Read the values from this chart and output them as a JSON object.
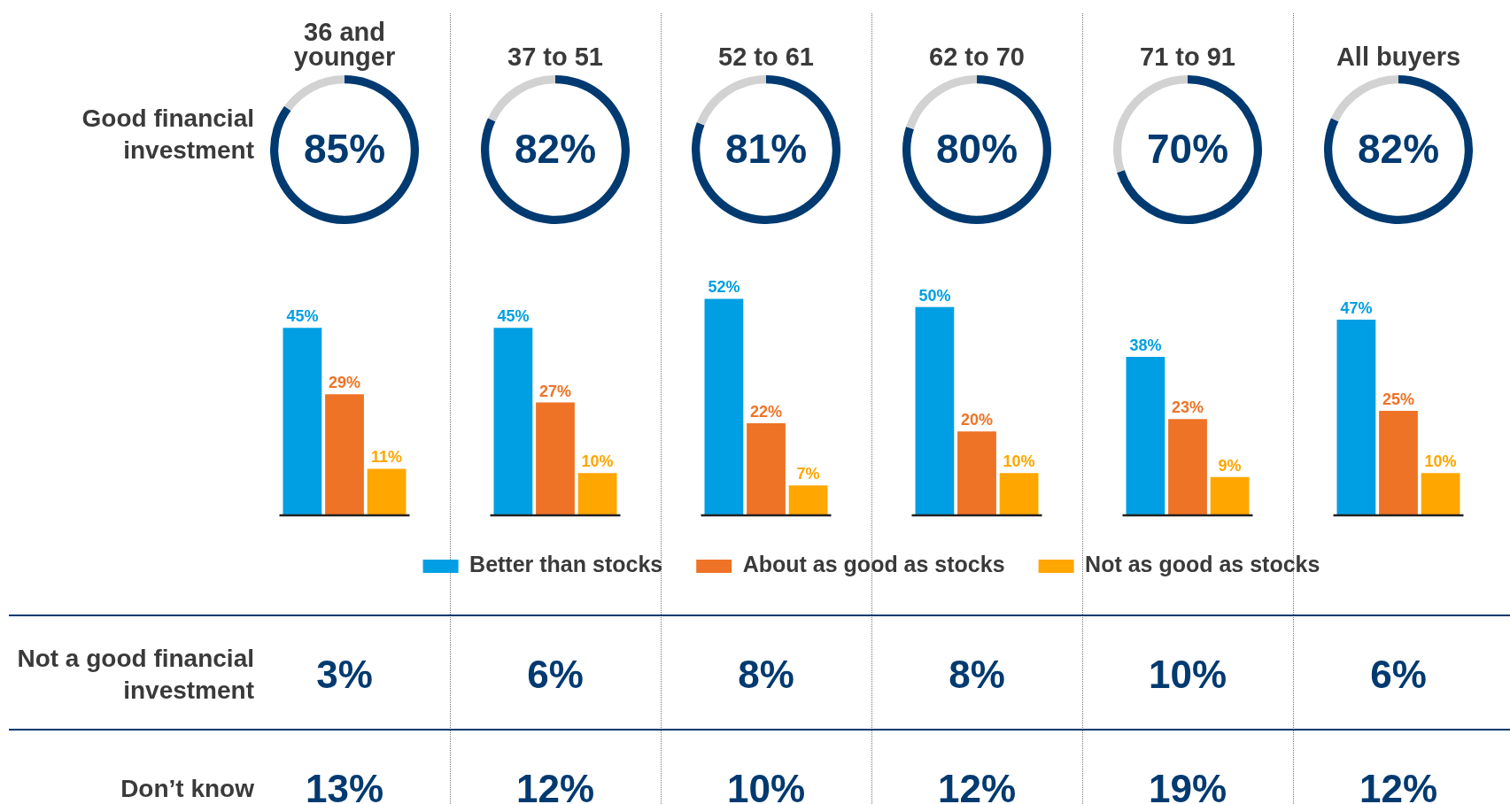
{
  "chart_data": [
    {
      "type": "donut",
      "title": "36 and younger",
      "categories": [
        "Good financial investment",
        null
      ],
      "values": [
        85,
        15
      ],
      "colors": [
        "#003a70",
        "#d2d2d2"
      ],
      "value_labels": [
        "85%",
        null
      ]
    },
    {
      "type": "donut",
      "title": "37 to 51",
      "categories": [
        null,
        null
      ],
      "values": [
        82,
        18
      ],
      "colors": [
        "#003a70",
        "#d2d2d2"
      ],
      "value_labels": [
        "82%",
        null
      ]
    },
    {
      "type": "donut",
      "title": "52 to 61",
      "categories": [
        null,
        null
      ],
      "values": [
        81,
        19
      ],
      "colors": [
        "#003a70",
        "#d2d2d2"
      ],
      "value_labels": [
        "81%",
        null
      ]
    },
    {
      "type": "donut",
      "title": "62 to 70",
      "categories": [
        null,
        null
      ],
      "values": [
        80,
        20
      ],
      "colors": [
        "#003a70",
        "#d2d2d2"
      ],
      "value_labels": [
        "80%",
        null
      ]
    },
    {
      "type": "donut",
      "title": "71 to 91",
      "categories": [
        null,
        null
      ],
      "values": [
        70,
        30
      ],
      "colors": [
        "#003a70",
        "#d2d2d2"
      ],
      "value_labels": [
        "70%",
        null
      ]
    },
    {
      "type": "donut",
      "title": "All buyers",
      "categories": [
        null,
        null
      ],
      "values": [
        82,
        18
      ],
      "colors": [
        "#003a70",
        "#d2d2d2"
      ],
      "value_labels": [
        "82%",
        null
      ]
    },
    {
      "type": "bar",
      "categories": [
        null,
        null,
        null,
        null,
        null,
        null
      ],
      "legend": "bottom",
      "series": [
        {
          "name": "Better than stocks",
          "color": "#009fe3",
          "values": [
            45,
            45,
            52,
            50,
            38,
            47
          ],
          "value_labels": [
            "45%",
            "45%",
            "52%",
            "50%",
            "38%",
            "47%"
          ]
        },
        {
          "name": "About as good as stocks",
          "color": "#ee7326",
          "values": [
            29,
            27,
            22,
            20,
            23,
            25
          ],
          "value_labels": [
            "29%",
            "27%",
            "22%",
            "20%",
            "23%",
            "25%"
          ]
        },
        {
          "name": "Not as good as stocks",
          "color": "#ffa600",
          "values": [
            11,
            10,
            7,
            10,
            9,
            10
          ],
          "value_labels": [
            "11%",
            "10%",
            "7%",
            "10%",
            "9%",
            "10%"
          ]
        }
      ]
    },
    {
      "type": "other",
      "y_categories": [
        "Not a good financial investment",
        "Don’t know"
      ],
      "cell_labels": [
        [
          "3%",
          "6%",
          "8%",
          "8%",
          "10%",
          "6%"
        ],
        [
          "13%",
          "12%",
          "10%",
          "12%",
          "19%",
          "12%"
        ]
      ]
    }
  ]
}
